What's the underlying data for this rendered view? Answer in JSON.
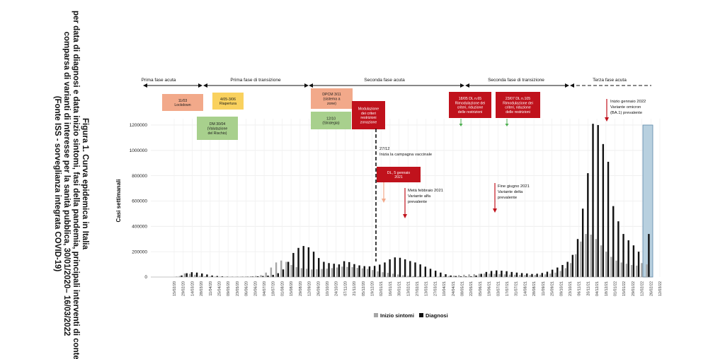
{
  "caption": [
    "Figura 1. Curva epidemica in Italia",
    "per data di diagnosi e data inizio sintomi, fasi della pandemia, principali interventi di contenimento a",
    "comparsa di varianti di interesse per la sanità pubblica, 30/01/2020– 16/03/2022",
    "(Fonte ISS - sorveglianza integrata COVID-19)"
  ],
  "phases": [
    {
      "label": "Prima fase acuta",
      "style": "solid"
    },
    {
      "label": "Prima fase di transizione",
      "style": "solid"
    },
    {
      "label": "Seconda fase acuta",
      "style": "solid"
    },
    {
      "label": "Seconda fase di transizione",
      "style": "solid"
    },
    {
      "label": "Terza fase acuta",
      "style": "dashed"
    }
  ],
  "boxes": [
    {
      "lines": [
        "11/03",
        "Lockdown"
      ],
      "color": "#f2a98a",
      "text_color": "#1a1a1a"
    },
    {
      "lines": [
        "4/05-3/06",
        "Riapertura"
      ],
      "color": "#f9d15e",
      "text_color": "#1a1a1a"
    },
    {
      "lines": [
        "DM 30/04",
        "(Valutazione",
        "del Rischio)"
      ],
      "color": "#a8d08d",
      "text_color": "#1a1a1a"
    },
    {
      "lines": [
        "DPCM 3/11",
        "(sistema a",
        "zone)"
      ],
      "color": "#f2a98a",
      "text_color": "#1a1a1a"
    },
    {
      "lines": [
        "12/10",
        "(Strategia)"
      ],
      "color": "#a8d08d",
      "text_color": "#1a1a1a"
    },
    {
      "lines": [
        "Modulazione",
        "dei criteri",
        "restrizioni",
        "zonazione"
      ],
      "color": "#c0121c",
      "text_color": "#ffffff"
    },
    {
      "lines": [
        "DL, 5 gennaio",
        "2021"
      ],
      "color": "#c0121c",
      "text_color": "#ffffff"
    },
    {
      "lines": [
        "18/05 DL n.65",
        "Rimodulazione dei",
        "criteri, riduzione",
        "delle restrizioni"
      ],
      "color": "#c0121c",
      "text_color": "#ffffff"
    },
    {
      "lines": [
        "23/07 DL n.105",
        "Rimodulazione dei",
        "criteri, riduzione",
        "delle restrizioni"
      ],
      "color": "#c0121c",
      "text_color": "#ffffff"
    }
  ],
  "annotations": [
    {
      "lines": [
        "27/12",
        "Inizia la campagna vaccinale"
      ]
    },
    {
      "lines": [
        "Metà febbraio 2021",
        "Variante alfa",
        "prevalente"
      ]
    },
    {
      "lines": [
        "Fine giugno 2021",
        "Variante delta",
        "prevalente"
      ]
    },
    {
      "lines": [
        "Inizio gennaio 2022",
        "Variante omicron",
        "(BA.1) prevalente"
      ]
    }
  ],
  "chart_data": {
    "type": "bar",
    "title": "",
    "xlabel": "",
    "ylabel": "Casi settimanali",
    "ylim": [
      0,
      1250000
    ],
    "yticks": [
      0,
      200000,
      400000,
      600000,
      800000,
      1000000,
      1200000
    ],
    "ytick_labels": [
      "0",
      "200000",
      "400000",
      "600000",
      "800000",
      "1000000",
      "1200000"
    ],
    "xtick_labels": [
      "15/02/20",
      "29/02/20",
      "14/03/20",
      "28/03/20",
      "11/04/20",
      "25/04/20",
      "09/05/20",
      "23/05/20",
      "06/06/20",
      "20/06/20",
      "04/07/20",
      "18/07/20",
      "01/08/20",
      "15/08/20",
      "29/08/20",
      "12/09/20",
      "26/09/20",
      "10/10/20",
      "24/10/20",
      "07/11/20",
      "21/11/20",
      "05/12/20",
      "19/12/20",
      "02/01/21",
      "16/01/21",
      "30/01/21",
      "13/02/21",
      "27/02/21",
      "13/03/21",
      "27/03/21",
      "10/04/21",
      "24/04/21",
      "08/05/21",
      "22/05/21",
      "05/06/21",
      "19/06/21",
      "03/07/21",
      "17/07/21",
      "31/07/21",
      "14/08/21",
      "28/08/21",
      "11/09/21",
      "25/09/21",
      "09/10/21",
      "23/10/21",
      "06/11/21",
      "20/11/21",
      "04/12/21",
      "18/12/21",
      "01/01/22",
      "15/01/22",
      "29/01/22",
      "12/02/22",
      "26/02/22",
      "12/03/22"
    ],
    "legend": {
      "position": "bottom"
    },
    "grid": true,
    "series": [
      {
        "name": "Inizio sintomi",
        "color": "#a6a6a6",
        "values": [
          1000,
          8000,
          28000,
          25000,
          18000,
          10000,
          6000,
          4000,
          3000,
          2500,
          2000,
          2000,
          2500,
          3000,
          4000,
          6000,
          9000,
          15000,
          35000,
          75000,
          115000,
          130000,
          120000,
          95000,
          78000,
          70000,
          65000,
          60000,
          62000,
          64000,
          66000,
          70000,
          75000,
          82000,
          80000,
          78000,
          72000,
          68000,
          64000,
          55000,
          45000,
          38000,
          33000,
          26000,
          20000,
          14000,
          10000,
          8000,
          6000,
          4000,
          3000,
          3000,
          4000,
          6000,
          8000,
          11000,
          15000,
          18000,
          21000,
          23000,
          25000,
          27000,
          26000,
          25000,
          23000,
          21000,
          19000,
          18000,
          17000,
          16000,
          16000,
          16000,
          18000,
          21000,
          27000,
          35000,
          48000,
          70000,
          110000,
          180000,
          280000,
          340000,
          335000,
          300000,
          250000,
          200000,
          160000,
          130000,
          115000,
          105000,
          95000,
          90000,
          110000,
          100000
        ]
      },
      {
        "name": "Diagnosi",
        "color": "#111111",
        "values": [
          2000,
          12000,
          30000,
          38000,
          35000,
          28000,
          20000,
          12000,
          8000,
          5000,
          3000,
          2000,
          2000,
          2500,
          3000,
          4000,
          6000,
          8000,
          11000,
          17000,
          30000,
          60000,
          120000,
          190000,
          230000,
          245000,
          235000,
          200000,
          150000,
          120000,
          110000,
          105000,
          100000,
          125000,
          118000,
          102000,
          92000,
          86000,
          84000,
          88000,
          98000,
          115000,
          140000,
          155000,
          152000,
          140000,
          126000,
          115000,
          100000,
          82000,
          65000,
          50000,
          35000,
          22000,
          12000,
          8000,
          6000,
          5000,
          6000,
          12000,
          25000,
          40000,
          48000,
          52000,
          50000,
          46000,
          40000,
          35000,
          31000,
          28000,
          24000,
          26000,
          32000,
          42000,
          58000,
          75000,
          95000,
          120000,
          175000,
          300000,
          540000,
          820000,
          1210000,
          1200000,
          1050000,
          910000,
          560000,
          440000,
          340000,
          290000,
          250000,
          200000,
          280000,
          340000
        ]
      },
      {
        "name": "",
        "color": "#b8d0df",
        "values": [
          0,
          0,
          0,
          0,
          0,
          0,
          0,
          0,
          0,
          0,
          0,
          0,
          0,
          0,
          0,
          0,
          0,
          0,
          0,
          0,
          0,
          0,
          0,
          0,
          0,
          0,
          0,
          0,
          0,
          0,
          0,
          0,
          0,
          0,
          0,
          0,
          0,
          0,
          0,
          0,
          0,
          0,
          0,
          0,
          0,
          0,
          0,
          0,
          0,
          0,
          0,
          0,
          0,
          0,
          0,
          0,
          0,
          0,
          0,
          0,
          0,
          0,
          0,
          0,
          0,
          0,
          0,
          0,
          0,
          0,
          0,
          0,
          0,
          0,
          0,
          0,
          0,
          0,
          0,
          0,
          0,
          0,
          0,
          0,
          0,
          0,
          0,
          0,
          0,
          0,
          0,
          0,
          0,
          1200000
        ]
      }
    ]
  }
}
